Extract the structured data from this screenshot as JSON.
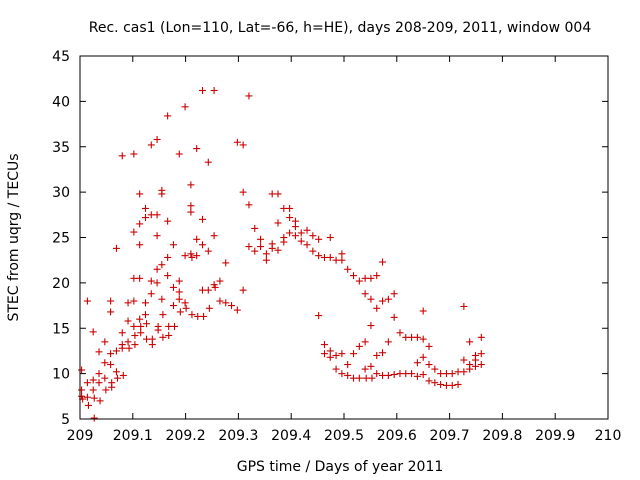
{
  "chart_data": {
    "type": "scatter",
    "title": "Rec. cas1 (Lon=110, Lat=-66, h=HE), days 208-209, 2011, window 004",
    "xlabel": "GPS time / Days of year 2011",
    "ylabel": "STEC from uqrg / TECUs",
    "xlim": [
      209,
      210
    ],
    "ylim": [
      5,
      45
    ],
    "xticks": [
      209,
      209.1,
      209.2,
      209.3,
      209.4,
      209.5,
      209.6,
      209.7,
      209.8,
      209.9,
      210
    ],
    "yticks": [
      5,
      10,
      15,
      20,
      25,
      30,
      35,
      40,
      45
    ],
    "grid": false,
    "marker": "+",
    "marker_color": "#cc0000",
    "series": [
      {
        "name": "STEC",
        "points": [
          [
            209.003,
            10.4
          ],
          [
            209.003,
            8.2
          ],
          [
            209.003,
            7.5
          ],
          [
            209.005,
            7.2
          ],
          [
            209.014,
            18.0
          ],
          [
            209.014,
            9.0
          ],
          [
            209.014,
            7.4
          ],
          [
            209.016,
            6.5
          ],
          [
            209.025,
            14.6
          ],
          [
            209.025,
            9.3
          ],
          [
            209.025,
            8.2
          ],
          [
            209.027,
            7.3
          ],
          [
            209.027,
            5.1
          ],
          [
            209.036,
            12.4
          ],
          [
            209.036,
            10.0
          ],
          [
            209.036,
            9.0
          ],
          [
            209.038,
            7.0
          ],
          [
            209.047,
            13.5
          ],
          [
            209.047,
            11.2
          ],
          [
            209.047,
            9.5
          ],
          [
            209.049,
            8.2
          ],
          [
            209.058,
            18.0
          ],
          [
            209.058,
            16.8
          ],
          [
            209.058,
            12.2
          ],
          [
            209.058,
            11.0
          ],
          [
            209.06,
            9.0
          ],
          [
            209.06,
            8.5
          ],
          [
            209.069,
            23.8
          ],
          [
            209.069,
            12.5
          ],
          [
            209.069,
            10.2
          ],
          [
            209.071,
            9.5
          ],
          [
            209.08,
            34.0
          ],
          [
            209.08,
            14.5
          ],
          [
            209.08,
            13.2
          ],
          [
            209.08,
            12.8
          ],
          [
            209.082,
            9.8
          ],
          [
            209.091,
            17.8
          ],
          [
            209.091,
            15.8
          ],
          [
            209.091,
            13.5
          ],
          [
            209.093,
            12.8
          ],
          [
            209.102,
            34.2
          ],
          [
            209.102,
            25.6
          ],
          [
            209.102,
            20.5
          ],
          [
            209.102,
            18.0
          ],
          [
            209.102,
            15.2
          ],
          [
            209.104,
            14.2
          ],
          [
            209.104,
            13.2
          ],
          [
            209.113,
            29.8
          ],
          [
            209.113,
            26.5
          ],
          [
            209.113,
            24.2
          ],
          [
            209.113,
            20.5
          ],
          [
            209.113,
            16.0
          ],
          [
            209.115,
            15.2
          ],
          [
            209.115,
            14.5
          ],
          [
            209.124,
            28.2
          ],
          [
            209.124,
            27.2
          ],
          [
            209.124,
            17.8
          ],
          [
            209.124,
            16.5
          ],
          [
            209.126,
            15.5
          ],
          [
            209.126,
            13.8
          ],
          [
            209.135,
            35.2
          ],
          [
            209.135,
            27.5
          ],
          [
            209.135,
            20.2
          ],
          [
            209.135,
            18.8
          ],
          [
            209.137,
            13.8
          ],
          [
            209.137,
            13.2
          ],
          [
            209.146,
            35.8
          ],
          [
            209.146,
            27.5
          ],
          [
            209.146,
            25.2
          ],
          [
            209.146,
            21.5
          ],
          [
            209.146,
            20.0
          ],
          [
            209.148,
            15.2
          ],
          [
            209.148,
            14.8
          ],
          [
            209.155,
            30.2
          ],
          [
            209.155,
            29.8
          ],
          [
            209.155,
            22.0
          ],
          [
            209.155,
            18.2
          ],
          [
            209.157,
            16.5
          ],
          [
            209.157,
            14.0
          ],
          [
            209.166,
            38.4
          ],
          [
            209.166,
            26.8
          ],
          [
            209.166,
            22.8
          ],
          [
            209.166,
            20.8
          ],
          [
            209.168,
            15.2
          ],
          [
            209.168,
            14.2
          ],
          [
            209.177,
            24.2
          ],
          [
            209.177,
            19.5
          ],
          [
            209.177,
            17.5
          ],
          [
            209.179,
            15.2
          ],
          [
            209.188,
            34.2
          ],
          [
            209.188,
            20.2
          ],
          [
            209.188,
            19.0
          ],
          [
            209.188,
            18.2
          ],
          [
            209.19,
            16.8
          ],
          [
            209.199,
            39.4
          ],
          [
            209.199,
            23.0
          ],
          [
            209.199,
            17.8
          ],
          [
            209.201,
            17.2
          ],
          [
            209.21,
            30.8
          ],
          [
            209.21,
            28.5
          ],
          [
            209.21,
            27.8
          ],
          [
            209.21,
            23.2
          ],
          [
            209.212,
            22.8
          ],
          [
            209.212,
            16.5
          ],
          [
            209.221,
            34.8
          ],
          [
            209.221,
            24.8
          ],
          [
            209.221,
            23.0
          ],
          [
            209.223,
            16.3
          ],
          [
            209.232,
            41.2
          ],
          [
            209.232,
            27.0
          ],
          [
            209.232,
            24.2
          ],
          [
            209.232,
            19.2
          ],
          [
            209.234,
            16.3
          ],
          [
            209.243,
            33.3
          ],
          [
            209.243,
            23.5
          ],
          [
            209.243,
            19.2
          ],
          [
            209.245,
            17.2
          ],
          [
            209.254,
            41.2
          ],
          [
            209.254,
            25.2
          ],
          [
            209.254,
            19.8
          ],
          [
            209.256,
            19.5
          ],
          [
            209.265,
            20.2
          ],
          [
            209.265,
            18.0
          ],
          [
            209.276,
            22.2
          ],
          [
            209.276,
            17.8
          ],
          [
            209.287,
            17.5
          ],
          [
            209.298,
            35.5
          ],
          [
            209.298,
            17.0
          ],
          [
            209.309,
            35.2
          ],
          [
            209.309,
            30.0
          ],
          [
            209.309,
            19.2
          ],
          [
            209.32,
            40.6
          ],
          [
            209.32,
            28.6
          ],
          [
            209.32,
            24.0
          ],
          [
            209.331,
            26.0
          ],
          [
            209.331,
            23.5
          ],
          [
            209.342,
            24.8
          ],
          [
            209.342,
            24.0
          ],
          [
            209.353,
            23.2
          ],
          [
            209.353,
            22.5
          ],
          [
            209.364,
            29.8
          ],
          [
            209.364,
            24.3
          ],
          [
            209.364,
            23.8
          ],
          [
            209.375,
            29.8
          ],
          [
            209.375,
            26.6
          ],
          [
            209.375,
            23.6
          ],
          [
            209.386,
            28.2
          ],
          [
            209.386,
            25.0
          ],
          [
            209.386,
            24.5
          ],
          [
            209.397,
            28.2
          ],
          [
            209.397,
            27.2
          ],
          [
            209.397,
            25.5
          ],
          [
            209.408,
            26.8
          ],
          [
            209.408,
            26.2
          ],
          [
            209.408,
            25.2
          ],
          [
            209.419,
            25.5
          ],
          [
            209.419,
            24.6
          ],
          [
            209.43,
            25.8
          ],
          [
            209.43,
            24.2
          ],
          [
            209.441,
            25.2
          ],
          [
            209.441,
            23.5
          ],
          [
            209.452,
            24.8
          ],
          [
            209.452,
            23.0
          ],
          [
            209.452,
            16.4
          ],
          [
            209.463,
            22.8
          ],
          [
            209.463,
            13.2
          ],
          [
            209.463,
            12.2
          ],
          [
            209.474,
            25.0
          ],
          [
            209.474,
            22.8
          ],
          [
            209.474,
            12.5
          ],
          [
            209.474,
            11.8
          ],
          [
            209.485,
            22.5
          ],
          [
            209.485,
            12.0
          ],
          [
            209.485,
            10.5
          ],
          [
            209.496,
            23.2
          ],
          [
            209.496,
            22.5
          ],
          [
            209.496,
            12.2
          ],
          [
            209.496,
            10.0
          ],
          [
            209.507,
            21.5
          ],
          [
            209.507,
            11.0
          ],
          [
            209.507,
            9.8
          ],
          [
            209.518,
            20.8
          ],
          [
            209.518,
            12.2
          ],
          [
            209.518,
            9.5
          ],
          [
            209.529,
            20.2
          ],
          [
            209.529,
            13.0
          ],
          [
            209.529,
            9.5
          ],
          [
            209.54,
            20.5
          ],
          [
            209.54,
            18.8
          ],
          [
            209.54,
            13.5
          ],
          [
            209.54,
            10.5
          ],
          [
            209.542,
            9.5
          ],
          [
            209.551,
            20.5
          ],
          [
            209.551,
            18.2
          ],
          [
            209.551,
            15.3
          ],
          [
            209.551,
            10.8
          ],
          [
            209.553,
            9.5
          ],
          [
            209.562,
            20.8
          ],
          [
            209.562,
            17.2
          ],
          [
            209.562,
            12.0
          ],
          [
            209.562,
            10.0
          ],
          [
            209.573,
            22.3
          ],
          [
            209.573,
            18.0
          ],
          [
            209.573,
            12.3
          ],
          [
            209.573,
            9.8
          ],
          [
            209.584,
            18.2
          ],
          [
            209.584,
            13.5
          ],
          [
            209.584,
            9.8
          ],
          [
            209.595,
            18.8
          ],
          [
            209.595,
            16.2
          ],
          [
            209.595,
            9.9
          ],
          [
            209.606,
            14.5
          ],
          [
            209.606,
            10.0
          ],
          [
            209.617,
            14.0
          ],
          [
            209.617,
            10.0
          ],
          [
            209.628,
            14.0
          ],
          [
            209.628,
            10.0
          ],
          [
            209.639,
            14.0
          ],
          [
            209.639,
            11.2
          ],
          [
            209.639,
            9.7
          ],
          [
            209.65,
            16.9
          ],
          [
            209.65,
            13.8
          ],
          [
            209.65,
            11.8
          ],
          [
            209.65,
            9.9
          ],
          [
            209.661,
            13.0
          ],
          [
            209.661,
            11.0
          ],
          [
            209.661,
            9.2
          ],
          [
            209.672,
            10.5
          ],
          [
            209.672,
            9.0
          ],
          [
            209.683,
            10.0
          ],
          [
            209.683,
            8.8
          ],
          [
            209.694,
            10.0
          ],
          [
            209.694,
            8.7
          ],
          [
            209.705,
            10.0
          ],
          [
            209.705,
            8.7
          ],
          [
            209.716,
            10.2
          ],
          [
            209.716,
            8.8
          ],
          [
            209.727,
            17.4
          ],
          [
            209.727,
            11.5
          ],
          [
            209.727,
            10.2
          ],
          [
            209.738,
            13.5
          ],
          [
            209.738,
            11.0
          ],
          [
            209.738,
            10.5
          ],
          [
            209.749,
            12.0
          ],
          [
            209.749,
            11.5
          ],
          [
            209.749,
            10.8
          ],
          [
            209.76,
            14.0
          ],
          [
            209.76,
            12.2
          ],
          [
            209.76,
            11.0
          ]
        ]
      }
    ]
  }
}
